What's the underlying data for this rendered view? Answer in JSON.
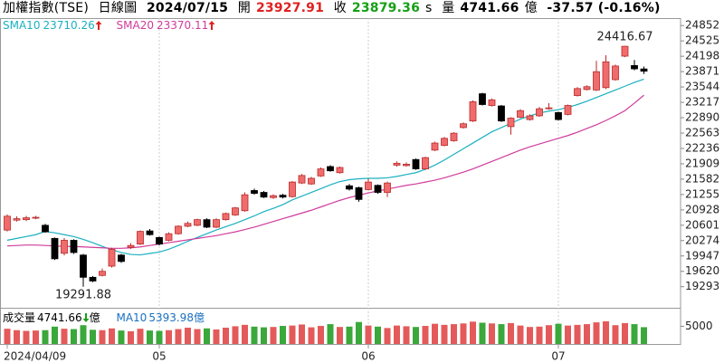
{
  "chart_data": {
    "type": "candlestick",
    "title": "加權指數(TSE)",
    "period": "日線圖",
    "date": "2024/07/15",
    "open_label": "開",
    "close_label": "收",
    "close_flag": "s",
    "volume_label": "量",
    "unit": "億",
    "change": "-37.57 (-0.16%)",
    "categories": [
      "2024/04/09",
      null,
      null,
      null,
      null,
      null,
      null,
      null,
      null,
      null,
      null,
      null,
      null,
      null,
      null,
      null,
      "05",
      null,
      null,
      null,
      null,
      null,
      null,
      null,
      null,
      null,
      null,
      null,
      null,
      null,
      null,
      null,
      null,
      null,
      null,
      null,
      null,
      null,
      "06",
      null,
      null,
      null,
      null,
      null,
      null,
      null,
      null,
      null,
      null,
      null,
      null,
      null,
      null,
      null,
      null,
      null,
      null,
      null,
      "07",
      null,
      null,
      null,
      null,
      null,
      null,
      null,
      null,
      null
    ],
    "open": [
      20498,
      20710,
      20720,
      20760,
      20600,
      20320,
      20004,
      20280,
      19966,
      19493,
      19533,
      19730,
      19966,
      20130,
      20200,
      20480,
      20340,
      20280,
      20420,
      20580,
      20600,
      20720,
      20560,
      20720,
      20820,
      20910,
      21340,
      21300,
      21190,
      21240,
      21210,
      21500,
      21480,
      21650,
      21850,
      21720,
      21440,
      21400,
      21360,
      21450,
      21300,
      21880,
      21870,
      22000,
      21800,
      22200,
      22300,
      22400,
      22680,
      22820,
      23400,
      23150,
      23140,
      22700,
      22900,
      22850,
      22930,
      23080,
      23000,
      22960,
      23360,
      23490,
      23480,
      23530,
      23700,
      24200,
      24000,
      23927.91
    ],
    "high": [
      20830,
      20790,
      20800,
      20800,
      20630,
      20340,
      20330,
      20300,
      19990,
      19520,
      19680,
      20120,
      19990,
      20220,
      20490,
      20520,
      20360,
      20450,
      20600,
      20680,
      20740,
      20750,
      20750,
      20870,
      20990,
      21300,
      21380,
      21330,
      21260,
      21270,
      21540,
      21690,
      21630,
      21830,
      21880,
      21850,
      21480,
      21420,
      21600,
      21470,
      21530,
      21960,
      21940,
      22020,
      22060,
      22380,
      22480,
      22580,
      22790,
      23260,
      23420,
      23300,
      23160,
      22900,
      23070,
      22960,
      23120,
      23200,
      23020,
      23170,
      23540,
      23580,
      24100,
      24220,
      24020,
      24416.67,
      24120,
      23980
    ],
    "low": [
      20470,
      20680,
      20690,
      20730,
      20440,
      19860,
      19960,
      19990,
      19291.88,
      19390,
      19510,
      19700,
      19800,
      20100,
      20180,
      20380,
      20170,
      20260,
      20400,
      20560,
      20580,
      20540,
      20540,
      20700,
      20800,
      20890,
      21250,
      21180,
      21160,
      21170,
      21190,
      21480,
      21460,
      21630,
      21740,
      21700,
      21340,
      21100,
      21340,
      21270,
      21200,
      21850,
      21850,
      21780,
      21780,
      22180,
      22280,
      22380,
      22660,
      22800,
      23150,
      23130,
      22800,
      22530,
      22880,
      22830,
      22910,
      23060,
      22830,
      22940,
      23340,
      23470,
      23460,
      23500,
      23680,
      24180,
      23900,
      23820
    ],
    "close": [
      20793,
      20740,
      20760,
      20770,
      20460,
      19887,
      20280,
      20020,
      19493,
      19414,
      19620,
      20090,
      19830,
      20170,
      20470,
      20400,
      20200,
      20420,
      20580,
      20640,
      20720,
      20560,
      20720,
      20850,
      20970,
      21250,
      21280,
      21200,
      21230,
      21200,
      21520,
      21660,
      21600,
      21800,
      21760,
      21830,
      21370,
      21150,
      21520,
      21300,
      21500,
      21920,
      21900,
      21800,
      22040,
      22350,
      22450,
      22560,
      22760,
      23230,
      23170,
      23270,
      22820,
      22880,
      23040,
      22930,
      23080,
      23100,
      22850,
      23150,
      23510,
      23550,
      23870,
      24080,
      23990,
      24410,
      23930,
      23879.36
    ],
    "up_color": "#f06c6c",
    "down_color": "#000000",
    "ylim": [
      18844,
      25010
    ],
    "yticks": [
      24852,
      24525,
      24198,
      23871,
      23544,
      23217,
      22890,
      22563,
      22236,
      21909,
      21582,
      21255,
      20928,
      20601,
      20274,
      19947,
      19620,
      19293
    ],
    "series": [
      {
        "name": "SMA10",
        "color": "#1ab0c0",
        "values": [
          20282,
          20320,
          20360,
          20400,
          20470,
          20440,
          20400,
          20360,
          20300,
          20230,
          20150,
          20080,
          20020,
          19980,
          19970,
          20000,
          20030,
          20090,
          20170,
          20260,
          20340,
          20420,
          20500,
          20570,
          20640,
          20720,
          20800,
          20890,
          20960,
          21040,
          21140,
          21220,
          21300,
          21380,
          21460,
          21530,
          21570,
          21590,
          21600,
          21600,
          21610,
          21640,
          21680,
          21720,
          21790,
          21880,
          21990,
          22110,
          22230,
          22350,
          22470,
          22590,
          22680,
          22770,
          22860,
          22930,
          22990,
          23030,
          23060,
          23110,
          23170,
          23240,
          23320,
          23400,
          23480,
          23560,
          23640,
          23710.26
        ]
      },
      {
        "name": "SMA20",
        "color": "#d03c9c",
        "values": [
          20160,
          20170,
          20180,
          20180,
          20170,
          20160,
          20150,
          20150,
          20140,
          20130,
          20120,
          20110,
          20110,
          20120,
          20140,
          20170,
          20200,
          20230,
          20260,
          20290,
          20320,
          20350,
          20380,
          20420,
          20460,
          20510,
          20560,
          20620,
          20680,
          20740,
          20800,
          20860,
          20920,
          20990,
          21060,
          21130,
          21190,
          21240,
          21290,
          21330,
          21370,
          21410,
          21450,
          21480,
          21520,
          21560,
          21610,
          21670,
          21730,
          21800,
          21880,
          21960,
          22040,
          22120,
          22200,
          22270,
          22330,
          22390,
          22450,
          22510,
          22580,
          22660,
          22740,
          22830,
          22930,
          23040,
          23200,
          23370.11
        ]
      }
    ],
    "volume": {
      "name": "成交量",
      "up_color": "#e45a5a",
      "down_color": "#3aa83a",
      "ylim": [
        0,
        9700
      ],
      "yticks": [
        5000
      ],
      "ma_name": "MA10",
      "ma_value": 5393.98,
      "values": [
        4300,
        3900,
        3700,
        3800,
        3900,
        4900,
        4300,
        4200,
        5300,
        4000,
        3900,
        4400,
        3800,
        3600,
        4300,
        3800,
        3700,
        3900,
        4200,
        4600,
        4200,
        4400,
        4100,
        4600,
        5000,
        5400,
        4900,
        4700,
        4800,
        5100,
        5200,
        5500,
        4700,
        5100,
        5600,
        4800,
        4900,
        6200,
        5200,
        4900,
        4500,
        5200,
        5000,
        4800,
        5100,
        5700,
        5400,
        5600,
        5800,
        6300,
        6000,
        5800,
        5600,
        5900,
        5200,
        4800,
        4900,
        5300,
        5700,
        5200,
        5400,
        5600,
        6100,
        6400,
        5300,
        5900,
        5600,
        4741.66
      ]
    }
  }
}
